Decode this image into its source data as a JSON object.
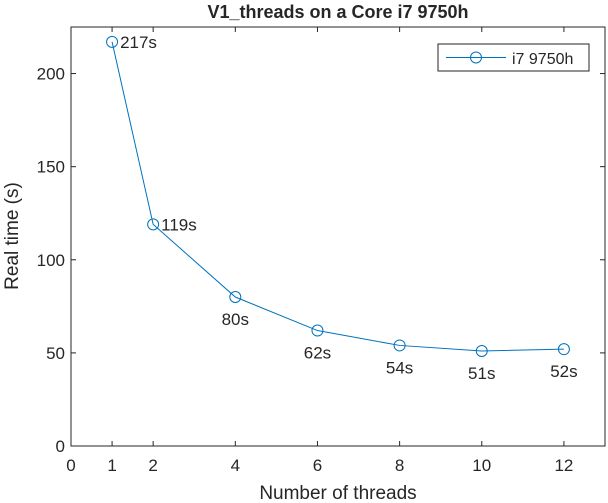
{
  "chart_data": {
    "type": "line",
    "title": "V1_threads on a Core i7 9750h",
    "xlabel": "Number of threads",
    "ylabel": "Real time (s)",
    "xlim": [
      0,
      13
    ],
    "ylim": [
      0,
      225
    ],
    "xticks": [
      0,
      1,
      2,
      4,
      6,
      8,
      10,
      12
    ],
    "yticks": [
      0,
      50,
      100,
      150,
      200
    ],
    "grid": false,
    "legend_position": "top-right",
    "series": [
      {
        "name": "i7 9750h",
        "color": "#0072BD",
        "marker": "circle",
        "x": [
          1,
          2,
          4,
          6,
          8,
          10,
          12
        ],
        "y": [
          217,
          119,
          80,
          62,
          54,
          51,
          52
        ],
        "labels": [
          "217s",
          "119s",
          "80s",
          "62s",
          "54s",
          "51s",
          "52s"
        ]
      }
    ]
  }
}
